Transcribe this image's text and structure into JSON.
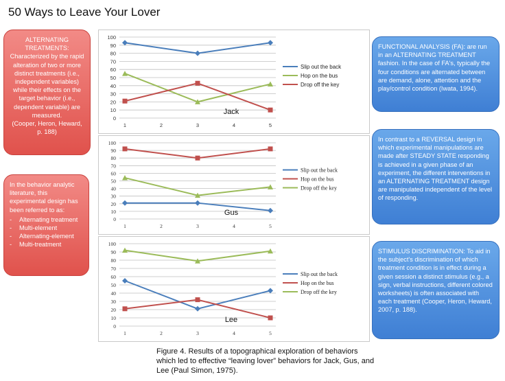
{
  "page_title": "50 Ways to Leave Your Lover",
  "colors": {
    "blue": "#4a7ebb",
    "red": "#c0504d",
    "green": "#9bbb59"
  },
  "chart_data": [
    {
      "type": "line",
      "annotation": "Jack",
      "x": [
        1,
        3,
        5
      ],
      "xticks": [
        1,
        2,
        3,
        4,
        5
      ],
      "ylim": [
        0,
        100
      ],
      "yticks": [
        0,
        10,
        20,
        30,
        40,
        50,
        60,
        70,
        80,
        90,
        100
      ],
      "legend_position": "right",
      "series": [
        {
          "name": "Slip out the back",
          "color": "#4a7ebb",
          "values": [
            93,
            80,
            93
          ]
        },
        {
          "name": "Hop on the bus",
          "color": "#9bbb59",
          "values": [
            55,
            20,
            42
          ]
        },
        {
          "name": "Drop off the key",
          "color": "#c0504d",
          "values": [
            21,
            43,
            10
          ]
        }
      ]
    },
    {
      "type": "line",
      "annotation": "Gus",
      "x": [
        1,
        3,
        5
      ],
      "xticks": [
        1,
        2,
        3,
        4,
        5
      ],
      "ylim": [
        0,
        100
      ],
      "yticks": [
        0,
        10,
        20,
        30,
        40,
        50,
        60,
        70,
        80,
        90,
        100
      ],
      "legend_position": "right",
      "series": [
        {
          "name": "Slip out the back",
          "color": "#4a7ebb",
          "values": [
            21,
            21,
            11
          ]
        },
        {
          "name": "Hop on the bus",
          "color": "#c0504d",
          "values": [
            92,
            80,
            92
          ]
        },
        {
          "name": "Drop off the key",
          "color": "#9bbb59",
          "values": [
            54,
            31,
            42
          ]
        }
      ]
    },
    {
      "type": "line",
      "annotation": "Lee",
      "x": [
        1,
        3,
        5
      ],
      "xticks": [
        1,
        2,
        3,
        4,
        5
      ],
      "ylim": [
        0,
        100
      ],
      "yticks": [
        0,
        10,
        20,
        30,
        40,
        50,
        60,
        70,
        80,
        90,
        100
      ],
      "legend_position": "right",
      "series": [
        {
          "name": "Slip out the back",
          "color": "#4a7ebb",
          "values": [
            55,
            21,
            43
          ]
        },
        {
          "name": "Hop on the bus",
          "color": "#c0504d",
          "values": [
            21,
            32,
            10
          ]
        },
        {
          "name": "Drop off the key",
          "color": "#9bbb59",
          "values": [
            92,
            79,
            91
          ]
        }
      ]
    }
  ],
  "callouts": {
    "alt_treatments": {
      "heading": "ALTERNATING TREATMENTS:",
      "body": "Characterized by the rapid alteration of two or more distinct treatments (i.e., independent variables) while their effects on the target behavior (i.e., dependent variable) are measured.",
      "cite": "(Cooper, Heron, Heward, p. 188)"
    },
    "referred": {
      "body": "In the behavior analytic literature, this experimental design has been referred to as:",
      "items": [
        "Alternating treatment",
        "Multi-element",
        "Alternating-element",
        "Multi-treatment"
      ]
    },
    "fa": "FUNCTIONAL ANALYSIS (FA): are run in an ALTERNATING TREATMENT fashion.  In the case of FA's, typically the four conditions are alternated between are demand, alone, attention and the play/control condition (Iwata, 1994).",
    "reversal": "In contrast to a REVERSAL design in which experimental manipulations are made after STEADY STATE responding is achieved in a given phase of an experiment, the different interventions in an ALTERNATING TREATMENT design are manipulated independent of the level of responding.",
    "stimulus": "STIMULUS DISCRIMINATION: To aid in the subject's discrimination of which treatment condition is in effect during a given session a distinct stimulus (e.g., a sign, verbal instructions, different colored worksheets) is often associated with each treatment (Cooper, Heron, Heward, 2007, p. 188)."
  },
  "caption": "Figure 4. Results of a topographical exploration of behaviors which led to effective “leaving lover” behaviors for Jack, Gus, and Lee (Paul Simon, 1975)."
}
